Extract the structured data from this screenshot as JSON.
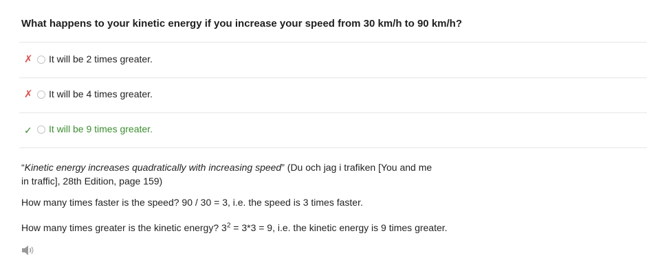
{
  "question": {
    "text": "What happens to your kinetic energy if you increase your speed from 30 km/h to 90 km/h?"
  },
  "options": [
    {
      "mark": "✗",
      "label": "It will be 2 times greater."
    },
    {
      "mark": "✗",
      "label": "It will be 4 times greater."
    },
    {
      "mark": "✓",
      "label": "It will be 9 times greater."
    }
  ],
  "explanation": {
    "quote_open": "“",
    "quote_italic": "Kinetic energy increases quadratically with increasing speed",
    "quote_close": "”",
    "source": " (Du och jag i trafiken [You and me in traffic], 28th Edition, page 159)",
    "line1": "How many times faster is the speed? 90 / 30 = 3, i.e. the speed is 3 times faster.",
    "line2_before": "How many times greater is the kinetic energy? 3",
    "line2_sup": "2",
    "line2_after": " = 3*3 = 9, i.e. the kinetic energy is 9 times greater."
  },
  "colors": {
    "wrong_mark": "#d9534f",
    "correct": "#3c8d2f",
    "divider": "#e6e6e6"
  },
  "icons": {
    "speaker": "speaker-icon"
  }
}
